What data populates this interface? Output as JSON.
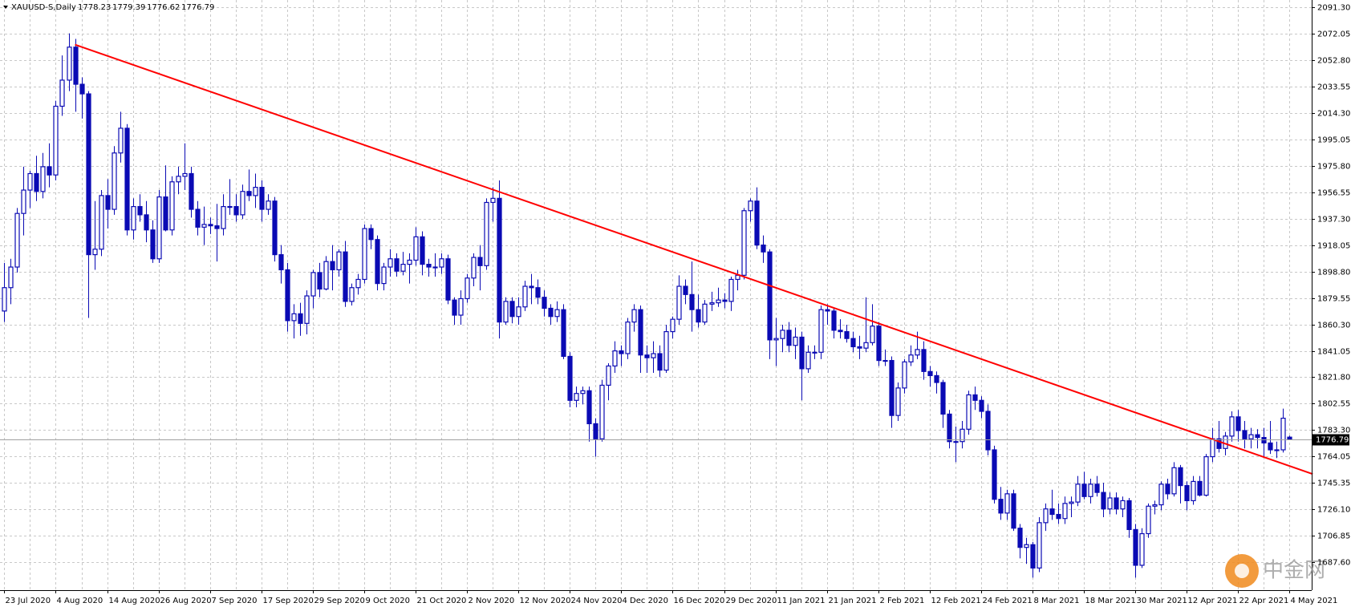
{
  "chart_data": {
    "type": "candlestick",
    "title": "XAUUSD-S,Daily",
    "color": "#0a0ab4",
    "grid": true,
    "ylim": [
      1666.9,
      2096.3
    ],
    "yticks": [
      {
        "value": 2091.3,
        "label": "2091.30"
      },
      2072.05,
      {
        "value": 2052.8,
        "label": "2052.80"
      },
      2033.55,
      {
        "value": 2014.3,
        "label": "2014.30"
      },
      1995.05,
      {
        "value": 1975.8,
        "label": "1975.80"
      },
      1956.55,
      {
        "value": 1937.3,
        "label": "1937.30"
      },
      1918.05,
      {
        "value": 1898.8,
        "label": "1898.80"
      },
      1879.55,
      {
        "value": 1860.3,
        "label": "1860.30"
      },
      1841.05,
      {
        "value": 1821.8,
        "label": "1821.80"
      },
      1802.55,
      {
        "value": 1783.3,
        "label": "1783.30"
      },
      1764.05,
      1745.35,
      {
        "value": 1726.1,
        "label": "1726.10"
      },
      1706.85,
      {
        "value": 1687.6,
        "label": "1687.60"
      }
    ],
    "categories": [
      "23 Jul 2020",
      null,
      null,
      null,
      null,
      null,
      null,
      null,
      "4 Aug 2020",
      null,
      null,
      null,
      null,
      null,
      null,
      null,
      "14 Aug 2020",
      null,
      null,
      null,
      null,
      null,
      null,
      null,
      "26 Aug 2020",
      null,
      null,
      null,
      null,
      null,
      null,
      null,
      "7 Sep 2020",
      null,
      null,
      null,
      null,
      null,
      null,
      null,
      "17 Sep 2020",
      null,
      null,
      null,
      null,
      null,
      null,
      null,
      "29 Sep 2020",
      null,
      null,
      null,
      null,
      null,
      null,
      null,
      "9 Oct 2020",
      null,
      null,
      null,
      null,
      null,
      null,
      null,
      "21 Oct 2020",
      null,
      null,
      null,
      null,
      null,
      null,
      null,
      "2 Nov 2020",
      null,
      null,
      null,
      null,
      null,
      null,
      null,
      "12 Nov 2020",
      null,
      null,
      null,
      null,
      null,
      null,
      null,
      "24 Nov 2020",
      null,
      null,
      null,
      null,
      null,
      null,
      null,
      "4 Dec 2020",
      null,
      null,
      null,
      null,
      null,
      null,
      null,
      "16 Dec 2020",
      null,
      null,
      null,
      null,
      null,
      null,
      null,
      "29 Dec 2020",
      null,
      null,
      null,
      null,
      null,
      null,
      null,
      "11 Jan 2021",
      null,
      null,
      null,
      null,
      null,
      null,
      null,
      "21 Jan 2021",
      null,
      null,
      null,
      null,
      null,
      null,
      null,
      "2 Feb 2021",
      null,
      null,
      null,
      null,
      null,
      null,
      null,
      "12 Feb 2021",
      null,
      null,
      null,
      null,
      null,
      null,
      null,
      "24 Feb 2021",
      null,
      null,
      null,
      null,
      null,
      null,
      null,
      "8 Mar 2021",
      null,
      null,
      null,
      null,
      null,
      null,
      null,
      "18 Mar 2021",
      null,
      null,
      null,
      null,
      null,
      null,
      null,
      "30 Mar 2021",
      null,
      null,
      null,
      null,
      null,
      null,
      null,
      "12 Apr 2021",
      null,
      null,
      null,
      null,
      null,
      null,
      null,
      "22 Apr 2021",
      null,
      null,
      null,
      null,
      null,
      null,
      null,
      "4 May 2021"
    ],
    "candles": [
      [
        1870,
        1905,
        1862,
        1887
      ],
      [
        1887,
        1908,
        1875,
        1902
      ],
      [
        1902,
        1945,
        1898,
        1941
      ],
      [
        1941,
        1975,
        1925,
        1958
      ],
      [
        1958,
        1972,
        1945,
        1970
      ],
      [
        1970,
        1983,
        1950,
        1957
      ],
      [
        1957,
        1985,
        1952,
        1975
      ],
      [
        1975,
        1992,
        1960,
        1969
      ],
      [
        1969,
        2023,
        1965,
        2019
      ],
      [
        2019,
        2056,
        2012,
        2038
      ],
      [
        2038,
        2072,
        2030,
        2062
      ],
      [
        2062,
        2068,
        2015,
        2035
      ],
      [
        2035,
        2040,
        2010,
        2028
      ],
      [
        2028,
        2030,
        1865,
        1911
      ],
      [
        1911,
        1950,
        1900,
        1915
      ],
      [
        1915,
        1958,
        1910,
        1954
      ],
      [
        1954,
        1966,
        1930,
        1944
      ],
      [
        1944,
        1990,
        1940,
        1985
      ],
      [
        1985,
        2015,
        1978,
        2003
      ],
      [
        2003,
        2006,
        1925,
        1929
      ],
      [
        1929,
        1952,
        1922,
        1946
      ],
      [
        1946,
        1955,
        1935,
        1940
      ],
      [
        1940,
        1950,
        1920,
        1929
      ],
      [
        1929,
        1936,
        1905,
        1908
      ],
      [
        1908,
        1958,
        1905,
        1953
      ],
      [
        1953,
        1976,
        1928,
        1929
      ],
      [
        1929,
        1968,
        1925,
        1964
      ],
      [
        1964,
        1975,
        1955,
        1968
      ],
      [
        1968,
        1992,
        1958,
        1970
      ],
      [
        1970,
        1975,
        1938,
        1944
      ],
      [
        1944,
        1950,
        1925,
        1931
      ],
      [
        1931,
        1946,
        1918,
        1933
      ],
      [
        1933,
        1938,
        1926,
        1932
      ],
      [
        1932,
        1948,
        1906,
        1930
      ],
      [
        1930,
        1955,
        1925,
        1946
      ],
      [
        1946,
        1966,
        1940,
        1946
      ],
      [
        1946,
        1955,
        1935,
        1940
      ],
      [
        1940,
        1962,
        1937,
        1957
      ],
      [
        1957,
        1973,
        1950,
        1954
      ],
      [
        1954,
        1970,
        1945,
        1960
      ],
      [
        1960,
        1965,
        1935,
        1944
      ],
      [
        1944,
        1955,
        1940,
        1950
      ],
      [
        1950,
        1953,
        1906,
        1911
      ],
      [
        1911,
        1918,
        1890,
        1900
      ],
      [
        1900,
        1905,
        1855,
        1863
      ],
      [
        1863,
        1875,
        1850,
        1868
      ],
      [
        1868,
        1876,
        1852,
        1861
      ],
      [
        1861,
        1885,
        1853,
        1881
      ],
      [
        1881,
        1900,
        1872,
        1898
      ],
      [
        1898,
        1905,
        1880,
        1886
      ],
      [
        1886,
        1910,
        1885,
        1906
      ],
      [
        1906,
        1918,
        1885,
        1900
      ],
      [
        1900,
        1915,
        1895,
        1913
      ],
      [
        1913,
        1921,
        1873,
        1877
      ],
      [
        1877,
        1890,
        1874,
        1887
      ],
      [
        1887,
        1897,
        1882,
        1893
      ],
      [
        1893,
        1933,
        1890,
        1930
      ],
      [
        1930,
        1933,
        1915,
        1922
      ],
      [
        1922,
        1925,
        1885,
        1890
      ],
      [
        1890,
        1905,
        1885,
        1902
      ],
      [
        1902,
        1915,
        1895,
        1908
      ],
      [
        1908,
        1912,
        1895,
        1899
      ],
      [
        1899,
        1913,
        1896,
        1904
      ],
      [
        1904,
        1912,
        1890,
        1907
      ],
      [
        1907,
        1931,
        1903,
        1924
      ],
      [
        1924,
        1928,
        1896,
        1904
      ],
      [
        1904,
        1908,
        1895,
        1902
      ],
      [
        1902,
        1912,
        1895,
        1902
      ],
      [
        1902,
        1912,
        1897,
        1908
      ],
      [
        1908,
        1911,
        1875,
        1878
      ],
      [
        1878,
        1880,
        1860,
        1867
      ],
      [
        1867,
        1885,
        1860,
        1879
      ],
      [
        1879,
        1897,
        1876,
        1894
      ],
      [
        1894,
        1912,
        1888,
        1909
      ],
      [
        1909,
        1918,
        1885,
        1903
      ],
      [
        1903,
        1952,
        1900,
        1949
      ],
      [
        1949,
        1960,
        1935,
        1952
      ],
      [
        1952,
        1965,
        1850,
        1862
      ],
      [
        1862,
        1880,
        1860,
        1877
      ],
      [
        1877,
        1880,
        1861,
        1866
      ],
      [
        1866,
        1880,
        1860,
        1873
      ],
      [
        1873,
        1892,
        1870,
        1888
      ],
      [
        1888,
        1897,
        1875,
        1887
      ],
      [
        1887,
        1893,
        1875,
        1880
      ],
      [
        1880,
        1885,
        1866,
        1872
      ],
      [
        1872,
        1875,
        1860,
        1866
      ],
      [
        1866,
        1877,
        1862,
        1871
      ],
      [
        1871,
        1875,
        1835,
        1837
      ],
      [
        1837,
        1840,
        1800,
        1805
      ],
      [
        1805,
        1815,
        1800,
        1810
      ],
      [
        1810,
        1815,
        1802,
        1812
      ],
      [
        1812,
        1815,
        1775,
        1788
      ],
      [
        1788,
        1792,
        1764,
        1777
      ],
      [
        1777,
        1820,
        1775,
        1816
      ],
      [
        1816,
        1832,
        1805,
        1830
      ],
      [
        1830,
        1848,
        1825,
        1841
      ],
      [
        1841,
        1845,
        1830,
        1839
      ],
      [
        1839,
        1865,
        1835,
        1862
      ],
      [
        1862,
        1875,
        1855,
        1871
      ],
      [
        1871,
        1874,
        1825,
        1838
      ],
      [
        1838,
        1845,
        1825,
        1836
      ],
      [
        1836,
        1848,
        1825,
        1839
      ],
      [
        1839,
        1845,
        1822,
        1827
      ],
      [
        1827,
        1860,
        1825,
        1855
      ],
      [
        1855,
        1866,
        1850,
        1864
      ],
      [
        1864,
        1896,
        1860,
        1888
      ],
      [
        1888,
        1893,
        1875,
        1882
      ],
      [
        1882,
        1906,
        1855,
        1871
      ],
      [
        1871,
        1882,
        1858,
        1862
      ],
      [
        1862,
        1878,
        1860,
        1875
      ],
      [
        1875,
        1884,
        1870,
        1876
      ],
      [
        1876,
        1887,
        1873,
        1878
      ],
      [
        1878,
        1883,
        1872,
        1877
      ],
      [
        1877,
        1895,
        1870,
        1893
      ],
      [
        1893,
        1900,
        1885,
        1896
      ],
      [
        1896,
        1945,
        1893,
        1943
      ],
      [
        1943,
        1952,
        1935,
        1950
      ],
      [
        1950,
        1960,
        1915,
        1918
      ],
      [
        1918,
        1925,
        1905,
        1913
      ],
      [
        1913,
        1915,
        1835,
        1849
      ],
      [
        1849,
        1865,
        1830,
        1850
      ],
      [
        1850,
        1860,
        1840,
        1856
      ],
      [
        1856,
        1862,
        1840,
        1845
      ],
      [
        1845,
        1858,
        1835,
        1851
      ],
      [
        1851,
        1855,
        1805,
        1828
      ],
      [
        1828,
        1845,
        1825,
        1840
      ],
      [
        1840,
        1845,
        1835,
        1840
      ],
      [
        1840,
        1874,
        1835,
        1871
      ],
      [
        1871,
        1875,
        1860,
        1870
      ],
      [
        1870,
        1872,
        1850,
        1856
      ],
      [
        1856,
        1864,
        1850,
        1855
      ],
      [
        1855,
        1860,
        1847,
        1850
      ],
      [
        1850,
        1855,
        1840,
        1844
      ],
      [
        1844,
        1852,
        1835,
        1843
      ],
      [
        1843,
        1880,
        1840,
        1847
      ],
      [
        1847,
        1875,
        1845,
        1859
      ],
      [
        1859,
        1862,
        1830,
        1834
      ],
      [
        1834,
        1842,
        1830,
        1834
      ],
      [
        1834,
        1837,
        1785,
        1794
      ],
      [
        1794,
        1818,
        1790,
        1814
      ],
      [
        1814,
        1835,
        1810,
        1833
      ],
      [
        1833,
        1845,
        1830,
        1838
      ],
      [
        1838,
        1855,
        1835,
        1842
      ],
      [
        1842,
        1848,
        1820,
        1826
      ],
      [
        1826,
        1830,
        1815,
        1823
      ],
      [
        1823,
        1826,
        1810,
        1818
      ],
      [
        1818,
        1820,
        1785,
        1795
      ],
      [
        1795,
        1798,
        1770,
        1775
      ],
      [
        1775,
        1786,
        1760,
        1775
      ],
      [
        1775,
        1790,
        1770,
        1784
      ],
      [
        1784,
        1812,
        1780,
        1809
      ],
      [
        1809,
        1815,
        1798,
        1805
      ],
      [
        1805,
        1808,
        1792,
        1797
      ],
      [
        1797,
        1802,
        1765,
        1769
      ],
      [
        1769,
        1772,
        1730,
        1733
      ],
      [
        1733,
        1742,
        1718,
        1723
      ],
      [
        1723,
        1740,
        1718,
        1737
      ],
      [
        1737,
        1740,
        1710,
        1712
      ],
      [
        1712,
        1715,
        1690,
        1698
      ],
      [
        1698,
        1705,
        1686,
        1700
      ],
      [
        1700,
        1702,
        1676,
        1683
      ],
      [
        1683,
        1720,
        1680,
        1716
      ],
      [
        1716,
        1730,
        1710,
        1726
      ],
      [
        1726,
        1740,
        1718,
        1722
      ],
      [
        1722,
        1730,
        1715,
        1719
      ],
      [
        1719,
        1735,
        1715,
        1730
      ],
      [
        1730,
        1735,
        1720,
        1731
      ],
      [
        1731,
        1750,
        1728,
        1744
      ],
      [
        1744,
        1753,
        1733,
        1735
      ],
      [
        1735,
        1748,
        1730,
        1744
      ],
      [
        1744,
        1750,
        1735,
        1738
      ],
      [
        1738,
        1745,
        1720,
        1726
      ],
      [
        1726,
        1738,
        1722,
        1734
      ],
      [
        1734,
        1738,
        1722,
        1726
      ],
      [
        1726,
        1735,
        1720,
        1732
      ],
      [
        1732,
        1734,
        1705,
        1711
      ],
      [
        1711,
        1715,
        1676,
        1685
      ],
      [
        1685,
        1712,
        1683,
        1708
      ],
      [
        1708,
        1730,
        1705,
        1728
      ],
      [
        1728,
        1732,
        1722,
        1729
      ],
      [
        1729,
        1746,
        1725,
        1744
      ],
      [
        1744,
        1748,
        1733,
        1737
      ],
      [
        1737,
        1760,
        1735,
        1756
      ],
      [
        1756,
        1758,
        1730,
        1743
      ],
      [
        1743,
        1746,
        1725,
        1732
      ],
      [
        1732,
        1750,
        1729,
        1746
      ],
      [
        1746,
        1750,
        1735,
        1736
      ],
      [
        1736,
        1766,
        1735,
        1764
      ],
      [
        1764,
        1785,
        1760,
        1777
      ],
      [
        1777,
        1790,
        1767,
        1770
      ],
      [
        1770,
        1782,
        1765,
        1779
      ],
      [
        1779,
        1797,
        1775,
        1793
      ],
      [
        1793,
        1798,
        1775,
        1783
      ],
      [
        1783,
        1790,
        1770,
        1777
      ],
      [
        1777,
        1785,
        1770,
        1780
      ],
      [
        1780,
        1784,
        1770,
        1778
      ],
      [
        1778,
        1785,
        1764,
        1774
      ],
      [
        1774,
        1790,
        1766,
        1769
      ],
      [
        1769,
        1775,
        1763,
        1769
      ],
      [
        1769,
        1799,
        1767,
        1792
      ],
      [
        1778.23,
        1779.39,
        1776.62,
        1776.79
      ]
    ],
    "trendline": {
      "x": [
        11,
        203.6
      ],
      "y": [
        2063.8,
        1751.4
      ],
      "color": "#ff0000"
    },
    "watermark": "中金网"
  }
}
